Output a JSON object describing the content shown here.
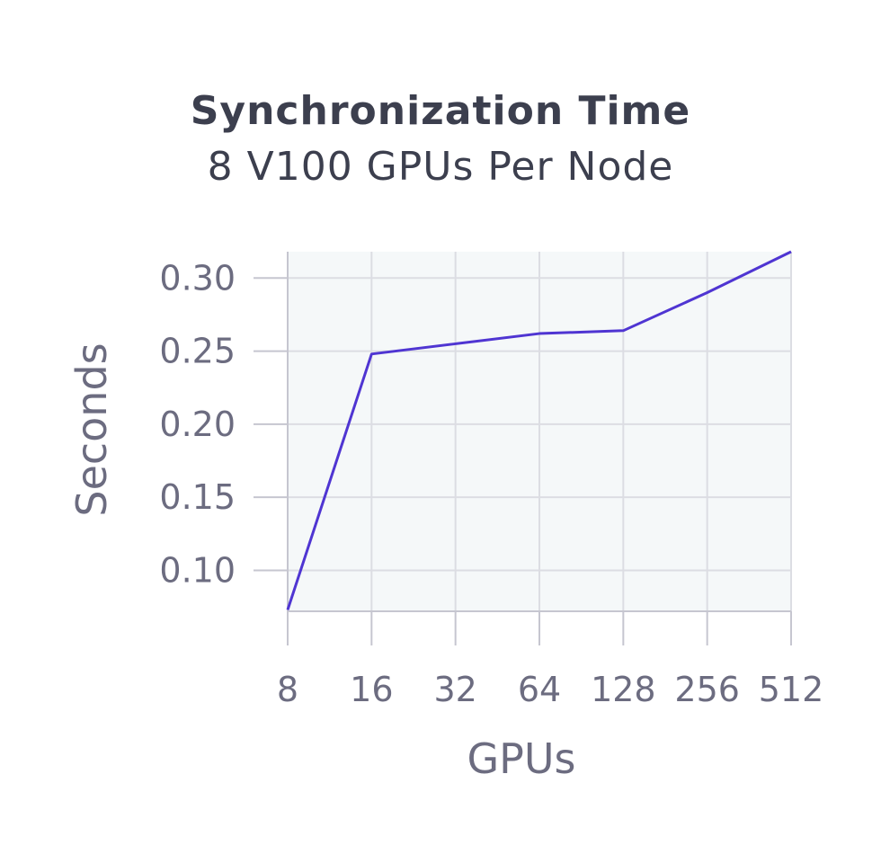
{
  "chart_data": {
    "type": "line",
    "title": "Synchronization Time",
    "subtitle": "8 V100 GPUs Per Node",
    "xlabel": "GPUs",
    "ylabel": "Seconds",
    "categories": [
      "8",
      "16",
      "32",
      "64",
      "128",
      "256",
      "512"
    ],
    "yticks": [
      "0.10",
      "0.15",
      "0.20",
      "0.25",
      "0.30"
    ],
    "ylim": [
      0.072,
      0.318
    ],
    "grid": true,
    "legend": "none",
    "series": [
      {
        "values": [
          0.073,
          0.248,
          0.255,
          0.262,
          0.264,
          0.29,
          0.318
        ],
        "color": "#4f35d2"
      }
    ],
    "colors": {
      "plot_background": "#f5f8f9",
      "grid": "#dcdde3",
      "axis": "#c6c6d0",
      "line": "#4f35d2",
      "title_text": "#3c3f4e",
      "label_text": "#6c6c80"
    }
  }
}
